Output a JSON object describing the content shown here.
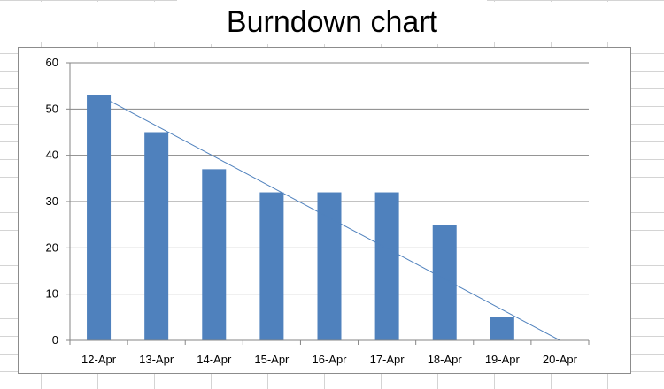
{
  "chart_data": {
    "type": "bar",
    "title": "Burndown chart",
    "categories": [
      "12-Apr",
      "13-Apr",
      "14-Apr",
      "15-Apr",
      "16-Apr",
      "17-Apr",
      "18-Apr",
      "19-Apr",
      "20-Apr"
    ],
    "series": [
      {
        "values": [
          53,
          45,
          37,
          32,
          32,
          32,
          25,
          5,
          null
        ],
        "type": "bar",
        "color": "#4f81bd"
      },
      {
        "values": [
          53,
          46.375,
          39.75,
          33.125,
          26.5,
          19.875,
          13.25,
          6.625,
          0
        ],
        "type": "line",
        "color": "#4f81bd"
      }
    ],
    "ylim": [
      0,
      60
    ],
    "yticks": [
      0,
      10,
      20,
      30,
      40,
      50,
      60
    ],
    "grid": true,
    "legend": "none"
  }
}
